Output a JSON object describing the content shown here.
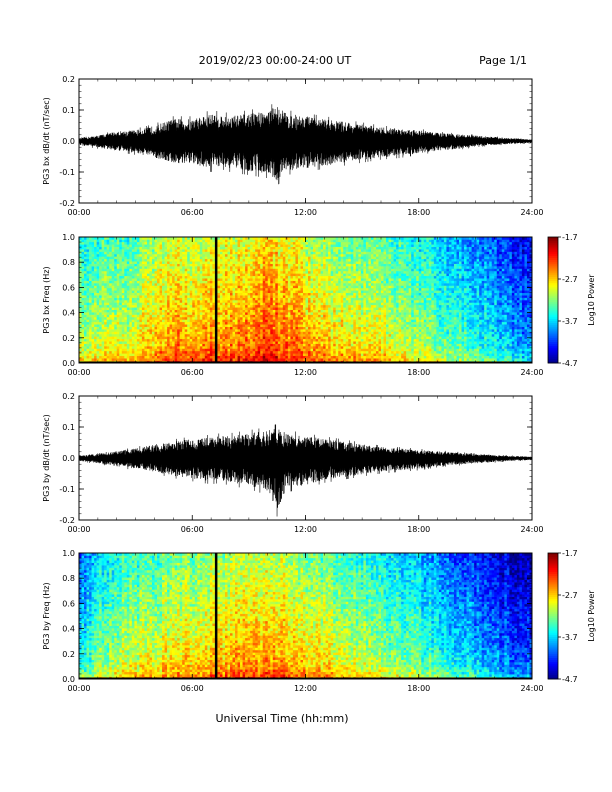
{
  "header": {
    "title": "2019/02/23  00:00-24:00 UT",
    "page": "Page 1/1"
  },
  "xaxis_label": "Universal Time (hh:mm)",
  "chart_data": [
    {
      "type": "line",
      "ylabel": "PG3 bx dB/dt (nT/sec)",
      "xlim": [
        0,
        24
      ],
      "ylim": [
        -0.2,
        0.2
      ],
      "yticks": [
        "-0.2",
        "-0.1",
        "0.0",
        "0.1",
        "0.2"
      ],
      "xticks": [
        "00:00",
        "06:00",
        "12:00",
        "18:00",
        "24:00"
      ],
      "envelope": {
        "x": [
          0,
          1,
          2,
          3,
          4,
          5,
          6,
          7,
          7.5,
          8,
          9,
          10,
          10.5,
          11,
          12,
          13,
          14,
          15,
          16,
          17,
          18,
          19,
          20,
          21,
          22,
          23,
          24
        ],
        "upper": [
          0.01,
          0.02,
          0.035,
          0.04,
          0.055,
          0.08,
          0.08,
          0.1,
          0.095,
          0.09,
          0.1,
          0.11,
          0.13,
          0.1,
          0.09,
          0.08,
          0.07,
          0.06,
          0.05,
          0.045,
          0.04,
          0.03,
          0.025,
          0.02,
          0.015,
          0.01,
          0.005
        ],
        "lower": [
          -0.015,
          -0.025,
          -0.035,
          -0.045,
          -0.06,
          -0.08,
          -0.085,
          -0.1,
          -0.09,
          -0.1,
          -0.11,
          -0.12,
          -0.145,
          -0.11,
          -0.1,
          -0.09,
          -0.08,
          -0.07,
          -0.06,
          -0.055,
          -0.045,
          -0.035,
          -0.03,
          -0.02,
          -0.015,
          -0.01,
          -0.008
        ]
      }
    },
    {
      "type": "heatmap",
      "ylabel": "PG3 bx Freq (Hz)",
      "xlim": [
        0,
        24
      ],
      "ylim": [
        0,
        1
      ],
      "yticks": [
        "0.0",
        "0.2",
        "0.4",
        "0.6",
        "0.8",
        "1.0"
      ],
      "xticks": [
        "00:00",
        "06:00",
        "12:00",
        "18:00",
        "24:00"
      ],
      "colorbar": {
        "label": "Log10 Power",
        "min": -4.7,
        "max": -1.7,
        "ticks": [
          "-1.7",
          "-2.7",
          "-3.7",
          "-4.7"
        ]
      },
      "data_gap_hours": [
        7.2,
        7.3
      ],
      "time_profile": {
        "x": [
          0,
          1,
          2,
          3,
          4,
          5,
          6,
          7,
          8,
          9,
          10,
          11,
          12,
          13,
          14,
          15,
          16,
          17,
          18,
          19,
          20,
          21,
          22,
          23,
          24
        ],
        "log10_power": [
          -3.0,
          -2.9,
          -2.85,
          -2.8,
          -2.6,
          -2.45,
          -2.5,
          -2.45,
          -2.4,
          -2.35,
          -2.2,
          -2.3,
          -2.5,
          -2.6,
          -2.7,
          -2.75,
          -2.85,
          -2.9,
          -3.0,
          -3.15,
          -3.3,
          -3.4,
          -3.55,
          -3.7,
          -3.9
        ]
      }
    },
    {
      "type": "line",
      "ylabel": "PG3 by dB/dt (nT/sec)",
      "xlim": [
        0,
        24
      ],
      "ylim": [
        -0.2,
        0.2
      ],
      "yticks": [
        "-0.2",
        "-0.1",
        "0.0",
        "0.1",
        "0.2"
      ],
      "xticks": [
        "00:00",
        "06:00",
        "12:00",
        "18:00",
        "24:00"
      ],
      "envelope": {
        "x": [
          0,
          1,
          2,
          3,
          4,
          5,
          6,
          7,
          7.5,
          8,
          9,
          10,
          10.5,
          11,
          12,
          13,
          14,
          15,
          16,
          17,
          18,
          19,
          20,
          21,
          22,
          23,
          24
        ],
        "upper": [
          0.01,
          0.015,
          0.025,
          0.035,
          0.05,
          0.06,
          0.07,
          0.075,
          0.08,
          0.08,
          0.09,
          0.1,
          0.11,
          0.09,
          0.08,
          0.07,
          0.06,
          0.05,
          0.04,
          0.035,
          0.03,
          0.025,
          0.02,
          0.015,
          0.01,
          0.008,
          0.005
        ],
        "lower": [
          -0.01,
          -0.02,
          -0.03,
          -0.04,
          -0.05,
          -0.065,
          -0.075,
          -0.085,
          -0.08,
          -0.09,
          -0.1,
          -0.12,
          -0.19,
          -0.11,
          -0.1,
          -0.08,
          -0.07,
          -0.06,
          -0.05,
          -0.045,
          -0.04,
          -0.03,
          -0.025,
          -0.02,
          -0.015,
          -0.01,
          -0.008
        ]
      }
    },
    {
      "type": "heatmap",
      "ylabel": "PG3 by Freq (Hz)",
      "xlim": [
        0,
        24
      ],
      "ylim": [
        0,
        1
      ],
      "yticks": [
        "0.0",
        "0.2",
        "0.4",
        "0.6",
        "0.8",
        "1.0"
      ],
      "xticks": [
        "00:00",
        "06:00",
        "12:00",
        "18:00",
        "24:00"
      ],
      "colorbar": {
        "label": "Log10 Power",
        "min": -4.7,
        "max": -1.7,
        "ticks": [
          "-1.7",
          "-2.7",
          "-3.7",
          "-4.7"
        ]
      },
      "data_gap_hours": [
        7.2,
        7.3
      ],
      "time_profile": {
        "x": [
          0,
          1,
          2,
          3,
          4,
          5,
          6,
          7,
          8,
          9,
          10,
          11,
          12,
          13,
          14,
          15,
          16,
          17,
          18,
          19,
          20,
          21,
          22,
          23,
          24
        ],
        "log10_power": [
          -3.5,
          -3.2,
          -3.0,
          -2.9,
          -2.8,
          -2.7,
          -2.7,
          -2.6,
          -2.55,
          -2.5,
          -2.45,
          -2.5,
          -2.65,
          -2.75,
          -2.85,
          -2.95,
          -3.05,
          -3.15,
          -3.25,
          -3.4,
          -3.55,
          -3.7,
          -3.85,
          -3.95,
          -4.1
        ]
      }
    }
  ]
}
